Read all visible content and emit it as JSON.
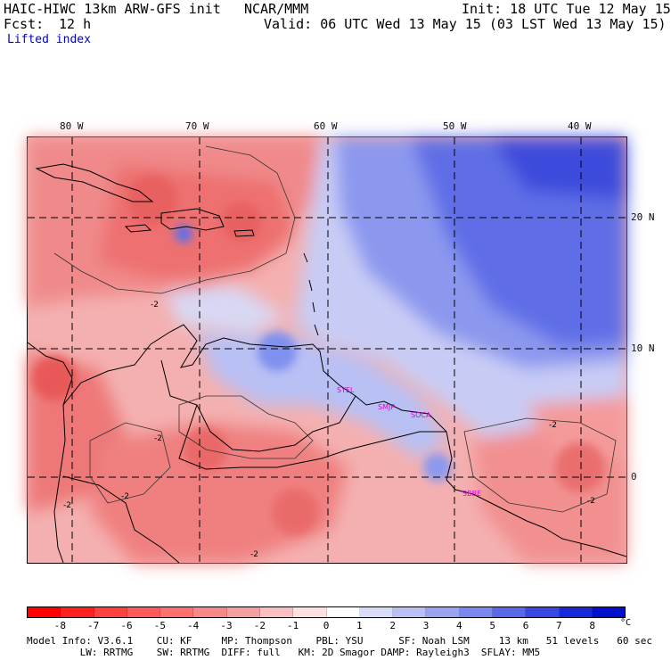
{
  "header": {
    "model_title": "HAIC-HIWC 13km ARW-GFS init",
    "org": "NCAR/MMM",
    "init": "Init: 18 UTC Tue 12 May 15",
    "fcst_label": "Fcst:",
    "fcst_value": "12 h",
    "valid": "Valid: 06 UTC Wed 13 May 15 (03 LST Wed 13 May 15)",
    "field": "Lifted index"
  },
  "map": {
    "lon_labels": [
      "80 W",
      "70 W",
      "60 W",
      "50 W",
      "40 W"
    ],
    "lat_labels": [
      "20 N",
      "10 N",
      "0"
    ],
    "contour_labels": [
      "-2",
      "-2",
      "-2",
      "-2",
      "-2",
      "-2",
      "-2"
    ],
    "stations": [
      "SYEL",
      "SMJP",
      "SOCA",
      "SBBE"
    ],
    "colors": {
      "warm_strong": "#ff3c3c",
      "warm_mid": "#f08080",
      "warm_light": "#f8b8b8",
      "neutral": "#ffffff",
      "cool_light": "#c8ccf5",
      "cool_mid": "#8090ee",
      "cool_strong": "#4050e0",
      "station_label": "#dd00dd"
    }
  },
  "colorbar": {
    "labels": [
      "-8",
      "-7",
      "-6",
      "-5",
      "-4",
      "-3",
      "-2",
      "-1",
      "0",
      "1",
      "2",
      "3",
      "4",
      "5",
      "6",
      "7",
      "8"
    ],
    "unit": "°C",
    "colors": [
      "#ff0000",
      "#ff2020",
      "#ff4040",
      "#ff5a5a",
      "#ff7070",
      "#f58888",
      "#f5a0a0",
      "#f8c0c0",
      "#fde0e0",
      "#ffffff",
      "#d8dcf8",
      "#b8c0f5",
      "#98a4f0",
      "#7888ec",
      "#5868e6",
      "#3848e0",
      "#1828d8",
      "#0010cc"
    ]
  },
  "footer": {
    "line1": "Model Info: V3.6.1    CU: KF     MP: Thompson    PBL: YSU      SF: Noah LSM     13 km   51 levels   60 sec",
    "line2": "         LW: RRTMG    SW: RRTMG  DIFF: full   KM: 2D Smagor DAMP: Rayleigh3  SFLAY: MM5"
  }
}
